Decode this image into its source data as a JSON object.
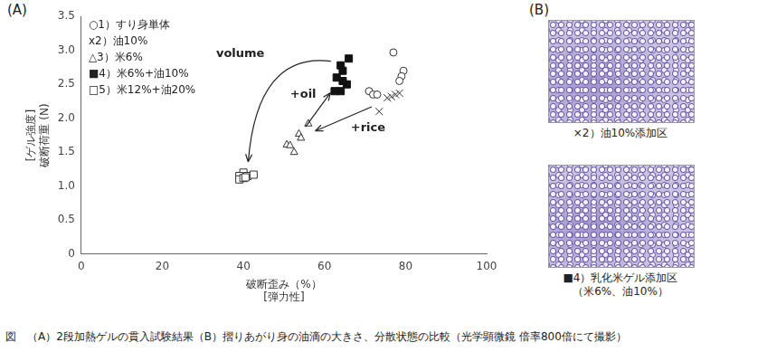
{
  "panel_labels": [
    "(A)",
    "(B)"
  ],
  "chart_data": {
    "type": "scatter",
    "x_label": [
      "破断歪み（%）",
      "[弾力性]"
    ],
    "y_label": [
      "[ゲル強度]",
      "破断荷重 (N)"
    ],
    "xlim": [
      0,
      100
    ],
    "xticks": [
      0,
      20,
      40,
      60,
      80,
      100
    ],
    "ylim": [
      0,
      3.5
    ],
    "yticks": [
      0,
      0.5,
      {
        "value": 1,
        "label": "1.0"
      },
      1.5,
      {
        "value": 2,
        "label": "2.0"
      },
      2.5,
      {
        "value": 3,
        "label": "3.0"
      },
      3.5
    ],
    "grid": false,
    "legend": "upper left",
    "annotations": [
      "volume",
      "+oil",
      "+rice"
    ],
    "series": [
      {
        "name": "○1）すり身単体",
        "color": "#333333",
        "marker": "circle-open",
        "x": [
          77,
          79.5,
          79,
          78.5,
          71,
          72,
          73
        ],
        "values": [
          2.97,
          2.7,
          2.62,
          2.55,
          2.4,
          2.35,
          2.35
        ]
      },
      {
        "name": "x2）油10%",
        "color": "#333333",
        "marker": "x",
        "x": [
          73.5,
          75.5,
          76.5,
          77.5,
          78.5
        ],
        "values": [
          2.1,
          2.3,
          2.32,
          2.35,
          2.37
        ]
      },
      {
        "name": "△3）米6%",
        "color": "#333333",
        "marker": "triangle-open",
        "x": [
          56,
          53.7,
          54.2,
          50.7,
          51.5,
          52.5
        ],
        "values": [
          1.93,
          1.78,
          1.72,
          1.62,
          1.61,
          1.51
        ]
      },
      {
        "name": "■4）米6%+油10%",
        "color": "#111111",
        "marker": "square",
        "x": [
          66,
          64,
          64.5,
          63,
          65.5,
          62.5,
          64,
          64.5
        ],
        "values": [
          2.88,
          2.78,
          2.7,
          2.6,
          2.5,
          2.4,
          2.4,
          2.55
        ]
      },
      {
        "name": "□5）米12%+油20%",
        "color": "#333333",
        "marker": "square-open",
        "x": [
          40,
          39,
          39,
          40,
          41,
          42.5,
          40.5
        ],
        "values": [
          1.2,
          1.15,
          1.1,
          1.12,
          1.15,
          1.17,
          1.13
        ]
      }
    ]
  },
  "micrographs": [
    {
      "label": [
        "×2）油10%添加区"
      ]
    },
    {
      "label": [
        "■4）乳化米ゲル添加区",
        "（米6%、油10%）"
      ]
    }
  ],
  "caption": "図　（A）2段加熱ゲルの貫入試験結果（B）摺りあがり身の油滴の大きさ、分散状態の比較（光学顕微鏡 倍率800倍にて撮影）"
}
